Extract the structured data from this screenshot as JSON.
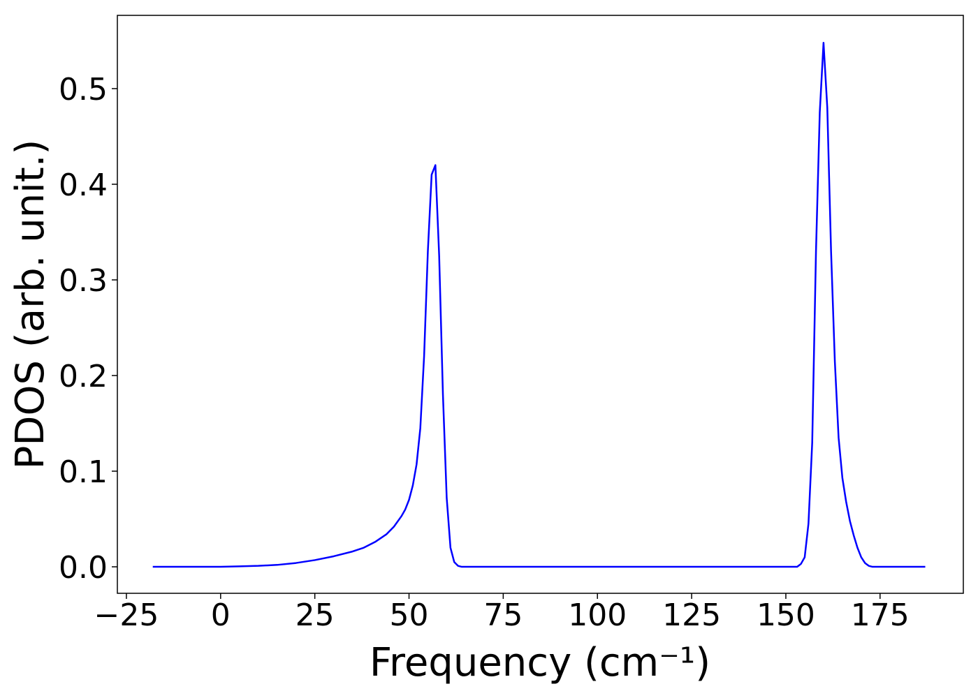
{
  "chart_data": {
    "type": "line",
    "xlabel": "Frequency (cm⁻¹)",
    "ylabel": "PDOS (arb. unit.)",
    "color": "#0000ff",
    "x": [
      -18,
      0,
      5,
      10,
      15,
      20,
      25,
      30,
      35,
      38,
      41,
      44,
      46,
      48,
      49,
      50,
      51,
      52,
      53,
      54,
      55,
      56,
      57,
      58,
      59,
      60,
      61,
      62,
      63,
      64,
      100,
      153,
      154,
      155,
      156,
      157,
      158,
      159,
      160,
      161,
      162,
      163,
      164,
      165,
      166,
      167,
      168,
      169,
      170,
      171,
      172,
      173,
      187
    ],
    "values": [
      0,
      0,
      0.0005,
      0.001,
      0.002,
      0.004,
      0.007,
      0.011,
      0.016,
      0.02,
      0.026,
      0.034,
      0.042,
      0.053,
      0.06,
      0.07,
      0.085,
      0.107,
      0.145,
      0.22,
      0.33,
      0.41,
      0.42,
      0.325,
      0.18,
      0.072,
      0.02,
      0.005,
      0.001,
      0,
      0,
      0,
      0.003,
      0.01,
      0.045,
      0.13,
      0.33,
      0.475,
      0.548,
      0.48,
      0.33,
      0.215,
      0.135,
      0.093,
      0.068,
      0.048,
      0.033,
      0.02,
      0.01,
      0.004,
      0.001,
      0,
      0
    ],
    "xlim": [
      -27.4,
      197.1
    ],
    "ylim": [
      -0.0277,
      0.5766
    ],
    "xticks": [
      {
        "value": -25,
        "label": "−25"
      },
      0,
      25,
      50,
      75,
      100,
      125,
      150,
      175
    ],
    "yticks": [
      {
        "value": 0,
        "label": "0.0"
      },
      0.1,
      0.2,
      0.3,
      0.4,
      0.5
    ]
  }
}
